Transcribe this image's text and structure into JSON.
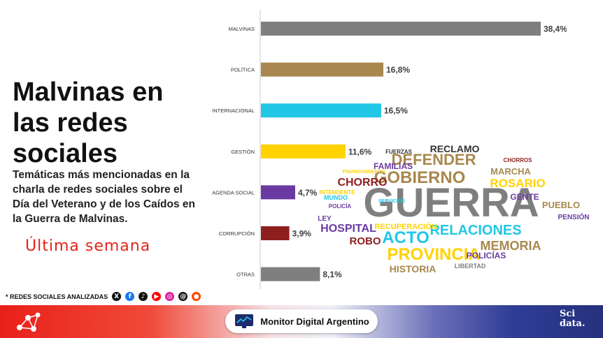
{
  "header": {
    "title": "Malvinas en las redes sociales",
    "subtitle": "Temáticas más mencionadas en la charla de redes sociales sobre el Día del Veterano y de los Caídos en la Guerra de Malvinas.",
    "period": "Última semana"
  },
  "networks": {
    "label": "* REDES SOCIALES ANALIZADAS",
    "icons": [
      {
        "name": "x",
        "glyph": "X",
        "color": "#111111"
      },
      {
        "name": "facebook",
        "glyph": "f",
        "color": "#1877f2"
      },
      {
        "name": "tiktok",
        "glyph": "♪",
        "color": "#111111"
      },
      {
        "name": "youtube",
        "glyph": "▶",
        "color": "#ff0000"
      },
      {
        "name": "instagram",
        "glyph": "◎",
        "color": "#d6249f"
      },
      {
        "name": "threads",
        "glyph": "@",
        "color": "#111111"
      },
      {
        "name": "reddit",
        "glyph": "●",
        "color": "#ff4500"
      }
    ]
  },
  "chart_data": {
    "type": "bar",
    "orientation": "horizontal",
    "categories": [
      "MALVINAS",
      "POLÍTICA",
      "INTERNACIONAL",
      "GESTIÓN",
      "AGENDA SOCIAL",
      "CORRUPCIÓN",
      "OTRAS"
    ],
    "values": [
      38.4,
      16.8,
      16.5,
      11.6,
      4.7,
      3.9,
      8.1
    ],
    "value_labels": [
      "38,4%",
      "16,8%",
      "16,5%",
      "11,6%",
      "4,7%",
      "3,9%",
      "8,1%"
    ],
    "colors": [
      "#7f7f7f",
      "#a8884e",
      "#22c7e6",
      "#ffd200",
      "#6a3aa2",
      "#8e1f1f",
      "#7f7f7f"
    ],
    "xlim": [
      0,
      38.4
    ],
    "grid": false,
    "legend": "none"
  },
  "word_cloud": {
    "words": [
      {
        "text": "GUERRA",
        "color": "#7f7f7f"
      },
      {
        "text": "PROVINCIA",
        "color": "#ffd200"
      },
      {
        "text": "RELACIONES",
        "color": "#22c7e6"
      },
      {
        "text": "ACTO",
        "color": "#22c7e6"
      },
      {
        "text": "GOBIERNO",
        "color": "#a8884e"
      },
      {
        "text": "DEFENDER",
        "color": "#a8884e"
      },
      {
        "text": "MEMORIA",
        "color": "#a8884e"
      },
      {
        "text": "HISTORIA",
        "color": "#a8884e"
      },
      {
        "text": "HOSPITAL",
        "color": "#6a3aa2"
      },
      {
        "text": "ROSARIO",
        "color": "#ffd200"
      },
      {
        "text": "CHORRO",
        "color": "#8e1f1f"
      },
      {
        "text": "ROBO",
        "color": "#8e1f1f"
      },
      {
        "text": "RECLAMO",
        "color": "#333333"
      },
      {
        "text": "FAMILIAS",
        "color": "#6a3aa2"
      },
      {
        "text": "MARCHA",
        "color": "#a8884e"
      },
      {
        "text": "GENTE",
        "color": "#6a3aa2"
      },
      {
        "text": "PUEBLO",
        "color": "#a8884e"
      },
      {
        "text": "POLICÍAS",
        "color": "#6a3aa2"
      },
      {
        "text": "RECUPERACIÓN",
        "color": "#ffd200"
      },
      {
        "text": "PENSIÓN",
        "color": "#6a3aa2"
      },
      {
        "text": "LEY",
        "color": "#6a3aa2"
      },
      {
        "text": "POLICÍA",
        "color": "#6a3aa2"
      },
      {
        "text": "LIBERTAD",
        "color": "#7f7f7f"
      },
      {
        "text": "MUNDO",
        "color": "#22c7e6"
      },
      {
        "text": "INTENDENTE",
        "color": "#ffd200"
      },
      {
        "text": "FINANCIAMIENTO",
        "color": "#ffd200"
      },
      {
        "text": "SERVICIOS",
        "color": "#22c7e6"
      },
      {
        "text": "FUERZAS",
        "color": "#333333"
      },
      {
        "text": "CHORROS",
        "color": "#8e1f1f"
      }
    ]
  },
  "footer": {
    "brand": "Monitor Digital Argentino",
    "partner_line1": "Sci",
    "partner_line2": "data."
  }
}
